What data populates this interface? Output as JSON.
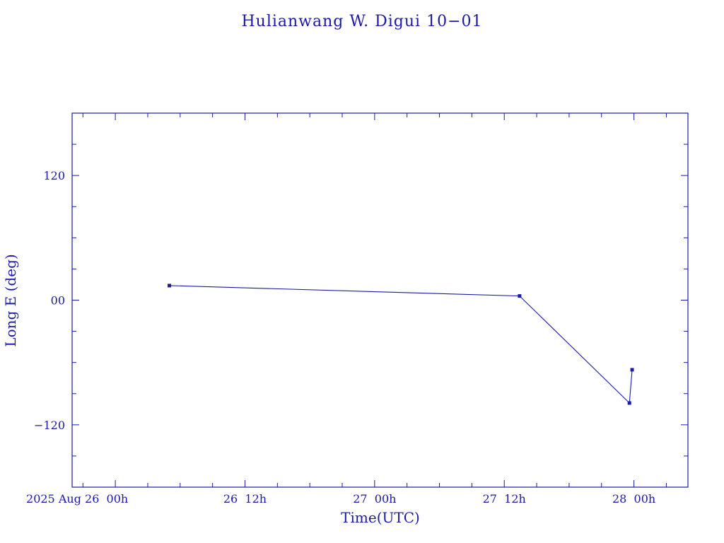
{
  "chart_data": {
    "type": "line",
    "title": "Hulianwang W. Digui 10−01",
    "xlabel": "Time(UTC)",
    "ylabel": "Long E (deg)",
    "ylim": [
      -180,
      180
    ],
    "xlim": [
      "2025-08-25 20:00",
      "2025-08-28 05:00"
    ],
    "xticks": [
      {
        "label": "2025 Aug 26  00h",
        "t": "2025-08-26 00:00"
      },
      {
        "label": "26  12h",
        "t": "2025-08-26 12:00"
      },
      {
        "label": "27  00h",
        "t": "2025-08-27 00:00"
      },
      {
        "label": "27  12h",
        "t": "2025-08-27 12:00"
      },
      {
        "label": "28  00h",
        "t": "2025-08-28 00:00"
      }
    ],
    "yticks": [
      {
        "label": "120",
        "v": 120
      },
      {
        "label": "00",
        "v": 0
      },
      {
        "label": "−120",
        "v": -120
      }
    ],
    "series": [
      {
        "points": [
          {
            "t": "2025-08-26 05:00",
            "v": 14
          },
          {
            "t": "2025-08-27 13:25",
            "v": 4
          },
          {
            "t": "2025-08-27 23:35",
            "v": -99
          },
          {
            "t": "2025-08-27 23:50",
            "v": -67
          }
        ]
      }
    ]
  }
}
